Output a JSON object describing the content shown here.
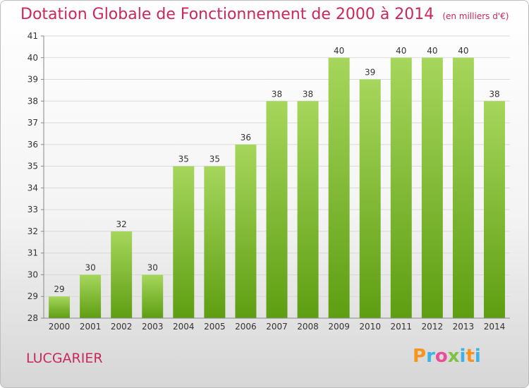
{
  "chart_data": {
    "type": "bar",
    "title": "Dotation Globale de Fonctionnement de 2000 à 2014",
    "unit_note": "(en milliers d'€)",
    "xlabel": "",
    "ylabel": "",
    "categories": [
      "2000",
      "2001",
      "2002",
      "2003",
      "2004",
      "2005",
      "2006",
      "2007",
      "2008",
      "2009",
      "2010",
      "2011",
      "2012",
      "2013",
      "2014"
    ],
    "values": [
      29,
      30,
      32,
      30,
      35,
      35,
      36,
      38,
      38,
      40,
      39,
      40,
      40,
      40,
      38
    ],
    "ylim": [
      28,
      41
    ],
    "yticks": [
      28,
      29,
      30,
      31,
      32,
      33,
      34,
      35,
      36,
      37,
      38,
      39,
      40,
      41
    ],
    "grid": true,
    "legend": "none",
    "colors": {
      "bar_light": "#a6d65c",
      "bar_dark": "#5e9e12",
      "grid": "#d9d9d9",
      "title": "#c8285a"
    }
  },
  "commune": "LUCGARIER",
  "brand": {
    "letters": [
      "P",
      "r",
      "o",
      "x",
      "i",
      "t",
      "i"
    ],
    "colors": [
      "#f7941d",
      "#3db2e8",
      "#e94e9a",
      "#7ec242",
      "#3db2e8",
      "#f7941d",
      "#3db2e8"
    ]
  }
}
